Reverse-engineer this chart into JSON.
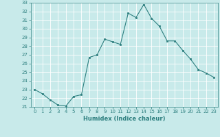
{
  "x": [
    0,
    1,
    2,
    3,
    4,
    5,
    6,
    7,
    8,
    9,
    10,
    11,
    12,
    13,
    14,
    15,
    16,
    17,
    18,
    19,
    20,
    21,
    22,
    23
  ],
  "y": [
    23,
    22.5,
    21.8,
    21.2,
    21.1,
    22.2,
    22.4,
    26.7,
    27.0,
    28.8,
    28.5,
    28.2,
    31.8,
    31.3,
    32.8,
    31.2,
    30.3,
    28.6,
    28.6,
    27.5,
    26.5,
    25.3,
    24.9,
    24.4
  ],
  "xlabel": "Humidex (Indice chaleur)",
  "xlim": [
    -0.5,
    23.5
  ],
  "ylim": [
    21,
    33
  ],
  "yticks": [
    21,
    22,
    23,
    24,
    25,
    26,
    27,
    28,
    29,
    30,
    31,
    32,
    33
  ],
  "xticks": [
    0,
    1,
    2,
    3,
    4,
    5,
    6,
    7,
    8,
    9,
    10,
    11,
    12,
    13,
    14,
    15,
    16,
    17,
    18,
    19,
    20,
    21,
    22,
    23
  ],
  "line_color": "#2d7f7f",
  "bg_color": "#c8eaea",
  "grid_color": "#b0d8d8"
}
